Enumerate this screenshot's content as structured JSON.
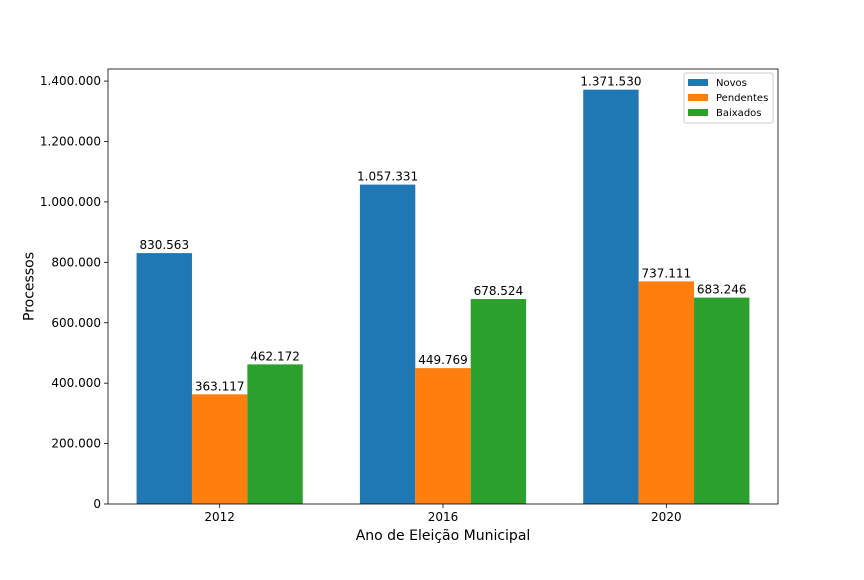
{
  "chart_data": {
    "type": "bar",
    "title": "",
    "xlabel": "Ano de Eleição Municipal",
    "ylabel": "Processos",
    "categories": [
      "2012",
      "2016",
      "2020"
    ],
    "series": [
      {
        "name": "Novos",
        "color": "#1f77b4",
        "values": [
          830563,
          1057331,
          1371530
        ],
        "labels": [
          "830.563",
          "1.057.331",
          "1.371.530"
        ]
      },
      {
        "name": "Pendentes",
        "color": "#ff7f0e",
        "values": [
          363117,
          449769,
          737111
        ],
        "labels": [
          "363.117",
          "449.769",
          "737.111"
        ]
      },
      {
        "name": "Baixados",
        "color": "#2ca02c",
        "values": [
          462172,
          678524,
          683246
        ],
        "labels": [
          "462.172",
          "678.524",
          "683.246"
        ]
      }
    ],
    "ylim": [
      0,
      1440000
    ],
    "yticks": [
      0,
      200000,
      400000,
      600000,
      800000,
      1000000,
      1200000,
      1400000
    ],
    "ytick_labels": [
      "0",
      "200.000",
      "400.000",
      "600.000",
      "800.000",
      "1.000.000",
      "1.200.000",
      "1.400.000"
    ],
    "grid": false,
    "legend_position": "top-right"
  }
}
